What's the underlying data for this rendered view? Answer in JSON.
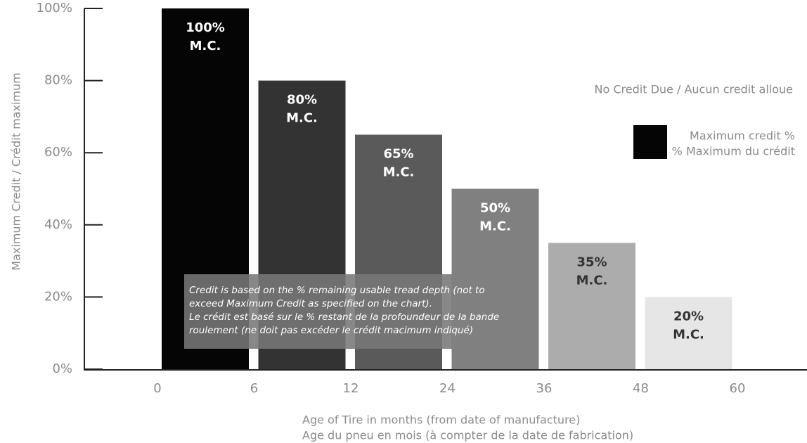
{
  "chart_data": {
    "type": "bar",
    "y_label": "Maximum Credit / Crédit maximum",
    "x_label_lines": [
      "Age of Tire in months (from date of manufacture)",
      "Age du pneu en mois (à compter de la date de fabrication)"
    ],
    "xticks": [
      0,
      6,
      12,
      24,
      36,
      48,
      60
    ],
    "values": [
      100,
      80,
      65,
      50,
      35,
      20
    ],
    "value_labels": [
      "100%",
      "80%",
      "65%",
      "50%",
      "35%",
      "20%"
    ],
    "value_label_suffix": "M.C.",
    "colors": [
      "#050505",
      "#333333",
      "#5a5a5a",
      "#808080",
      "#acacac",
      "#e6e6e6"
    ],
    "ylim": [
      0,
      100
    ],
    "yticks": [
      {
        "value": 0,
        "label": "0%"
      },
      {
        "value": 20,
        "label": "20%"
      },
      {
        "value": 40,
        "label": "40%"
      },
      {
        "value": 60,
        "label": "60%"
      },
      {
        "value": 80,
        "label": "80%"
      },
      {
        "value": 100,
        "label": "100%"
      }
    ],
    "no_credit_note": "No Credit Due /  Aucun credit alloue",
    "legend": {
      "color": "#050505",
      "lines": [
        "Maximum credit %",
        "% Maximum du crédit"
      ]
    },
    "note_lines": [
      "Credit is based on the % remaining usable tread depth (not to",
      "exceed Maximum Credit as specified on the chart).",
      "Le crédit est basé sur le % restant de la profoundeur de la bande",
      "roulement (ne doit pas excéder le crédit macimum indiqué)"
    ]
  }
}
